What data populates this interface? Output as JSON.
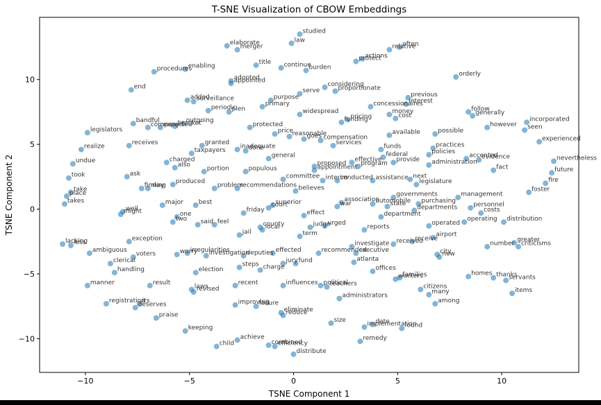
{
  "chart_data": {
    "type": "scatter",
    "title": "T-SNE Visualization of CBOW Embeddings",
    "xlabel": "TSNE Component 1",
    "ylabel": "TSNE Component 2",
    "xlim": [
      -12.2,
      13.7
    ],
    "ylim": [
      -12.6,
      14.8
    ],
    "xticks": [
      -10,
      -5,
      0,
      5,
      10
    ],
    "yticks": [
      -10,
      -5,
      0,
      5,
      10
    ],
    "grid": false,
    "marker_color": "#1f77b4",
    "points": [
      {
        "label": "studied",
        "x": 0.3,
        "y": 13.5
      },
      {
        "label": "elaborate",
        "x": -3.2,
        "y": 12.6
      },
      {
        "label": "merger",
        "x": -2.7,
        "y": 12.3
      },
      {
        "label": "law",
        "x": -0.1,
        "y": 12.8
      },
      {
        "label": "often",
        "x": 5.1,
        "y": 12.5
      },
      {
        "label": "relative",
        "x": 4.6,
        "y": 12.3
      },
      {
        "label": "actions",
        "x": 3.3,
        "y": 11.6
      },
      {
        "label": "protect",
        "x": 3.0,
        "y": 11.4
      },
      {
        "label": "title",
        "x": -1.8,
        "y": 11.1
      },
      {
        "label": "continue",
        "x": -0.6,
        "y": 10.9
      },
      {
        "label": "burden",
        "x": 0.6,
        "y": 10.7
      },
      {
        "label": "procedures",
        "x": -6.7,
        "y": 10.6
      },
      {
        "label": "enabling",
        "x": -5.2,
        "y": 10.8
      },
      {
        "label": "orderly",
        "x": 7.8,
        "y": 10.2
      },
      {
        "label": "adopted",
        "x": -3.0,
        "y": 9.9
      },
      {
        "label": "appointed",
        "x": -3.0,
        "y": 9.7
      },
      {
        "label": "end",
        "x": -7.8,
        "y": 9.2
      },
      {
        "label": "considering",
        "x": 1.5,
        "y": 9.4
      },
      {
        "label": "proportionate",
        "x": 2.0,
        "y": 9.1
      },
      {
        "label": "serve",
        "x": 0.3,
        "y": 8.9
      },
      {
        "label": "previous",
        "x": 5.5,
        "y": 8.6
      },
      {
        "label": "added",
        "x": -5.1,
        "y": 8.4
      },
      {
        "label": "surveillance",
        "x": -4.8,
        "y": 8.3
      },
      {
        "label": "purpose",
        "x": -1.1,
        "y": 8.4
      },
      {
        "label": "interest",
        "x": 5.4,
        "y": 8.1
      },
      {
        "label": "primary",
        "x": -1.5,
        "y": 7.9
      },
      {
        "label": "concessionaires",
        "x": 3.7,
        "y": 7.9
      },
      {
        "label": "periodic",
        "x": -4.1,
        "y": 7.6
      },
      {
        "label": "plen",
        "x": -3.1,
        "y": 7.5
      },
      {
        "label": "widespread",
        "x": 0.3,
        "y": 7.3
      },
      {
        "label": "money",
        "x": 4.6,
        "y": 7.3
      },
      {
        "label": "follow",
        "x": 8.4,
        "y": 7.5
      },
      {
        "label": "generally",
        "x": 8.6,
        "y": 7.2
      },
      {
        "label": "cost",
        "x": 4.9,
        "y": 7.0
      },
      {
        "label": "pricing",
        "x": 2.6,
        "y": 6.9
      },
      {
        "label": "funding",
        "x": 2.3,
        "y": 6.7
      },
      {
        "label": "bandful",
        "x": -7.7,
        "y": 6.6
      },
      {
        "label": "outgoing",
        "x": -5.3,
        "y": 6.6
      },
      {
        "label": "company",
        "x": -7.0,
        "y": 6.3
      },
      {
        "label": "bracket",
        "x": -5.7,
        "y": 6.4
      },
      {
        "label": "expected",
        "x": -6.4,
        "y": 6.3
      },
      {
        "label": "protected",
        "x": -2.1,
        "y": 6.3
      },
      {
        "label": "incorporated",
        "x": 11.2,
        "y": 6.7
      },
      {
        "label": "however",
        "x": 9.3,
        "y": 6.3
      },
      {
        "label": "seen",
        "x": 11.1,
        "y": 6.1
      },
      {
        "label": "legislators",
        "x": -9.9,
        "y": 5.9
      },
      {
        "label": "price",
        "x": -0.9,
        "y": 5.8
      },
      {
        "label": "reasonable",
        "x": -0.2,
        "y": 5.6
      },
      {
        "label": "available",
        "x": 4.6,
        "y": 5.7
      },
      {
        "label": "possible",
        "x": 6.8,
        "y": 5.8
      },
      {
        "label": "goes",
        "x": 0.5,
        "y": 5.4
      },
      {
        "label": "compensation",
        "x": 1.3,
        "y": 5.3
      },
      {
        "label": "experienced",
        "x": 11.8,
        "y": 5.2
      },
      {
        "label": "receives",
        "x": -7.9,
        "y": 4.9
      },
      {
        "label": "granted",
        "x": -4.4,
        "y": 4.9
      },
      {
        "label": "services",
        "x": 1.9,
        "y": 4.9
      },
      {
        "label": "realize",
        "x": -10.2,
        "y": 4.6
      },
      {
        "label": "inadequate",
        "x": -2.7,
        "y": 4.6
      },
      {
        "label": "done",
        "x": -2.3,
        "y": 4.5
      },
      {
        "label": "funds",
        "x": 4.2,
        "y": 4.6
      },
      {
        "label": "practices",
        "x": 6.7,
        "y": 4.7
      },
      {
        "label": "taxpayers",
        "x": -4.9,
        "y": 4.3
      },
      {
        "label": "policies",
        "x": 6.5,
        "y": 4.2
      },
      {
        "label": "federal",
        "x": 4.3,
        "y": 4.0
      },
      {
        "label": "accented",
        "x": 8.3,
        "y": 3.9
      },
      {
        "label": "evidence",
        "x": 8.9,
        "y": 3.8
      },
      {
        "label": "general",
        "x": -1.2,
        "y": 3.9
      },
      {
        "label": "effective",
        "x": 2.8,
        "y": 3.6
      },
      {
        "label": "provide",
        "x": 4.8,
        "y": 3.6
      },
      {
        "label": "nevertheless",
        "x": 12.5,
        "y": 3.7
      },
      {
        "label": "undue",
        "x": -10.6,
        "y": 3.5
      },
      {
        "label": "charged",
        "x": -6.1,
        "y": 3.6
      },
      {
        "label": "also",
        "x": -5.7,
        "y": 3.2
      },
      {
        "label": "administration",
        "x": 6.5,
        "y": 3.4
      },
      {
        "label": "proposed",
        "x": 1.0,
        "y": 3.3
      },
      {
        "label": "program",
        "x": 3.1,
        "y": 3.3
      },
      {
        "label": "appointment",
        "x": 1.0,
        "y": 3.0
      },
      {
        "label": "fact",
        "x": 9.6,
        "y": 3.0
      },
      {
        "label": "portion",
        "x": -4.3,
        "y": 2.9
      },
      {
        "label": "populous",
        "x": -2.3,
        "y": 2.9
      },
      {
        "label": "future",
        "x": 12.4,
        "y": 2.8
      },
      {
        "label": "took",
        "x": -10.8,
        "y": 2.4
      },
      {
        "label": "ask",
        "x": -8.0,
        "y": 2.5
      },
      {
        "label": "committee",
        "x": -0.5,
        "y": 2.3
      },
      {
        "label": "interim",
        "x": 1.4,
        "y": 2.2
      },
      {
        "label": "conducted",
        "x": 2.1,
        "y": 2.2
      },
      {
        "label": "assistance",
        "x": 3.8,
        "y": 2.2
      },
      {
        "label": "next",
        "x": 5.6,
        "y": 2.3
      },
      {
        "label": "legislature",
        "x": 5.9,
        "y": 1.9
      },
      {
        "label": "fire",
        "x": 12.1,
        "y": 2.0
      },
      {
        "label": "produced",
        "x": -5.8,
        "y": 1.9
      },
      {
        "label": "finding",
        "x": -7.3,
        "y": 1.6
      },
      {
        "label": "may",
        "x": -7.0,
        "y": 1.6
      },
      {
        "label": "problem",
        "x": -3.8,
        "y": 1.6
      },
      {
        "label": "recommendations",
        "x": -2.7,
        "y": 1.6
      },
      {
        "label": "believes",
        "x": 0.1,
        "y": 1.4
      },
      {
        "label": "take",
        "x": -10.7,
        "y": 1.3
      },
      {
        "label": "place",
        "x": -10.9,
        "y": 1.0
      },
      {
        "label": "foster",
        "x": 11.3,
        "y": 1.3
      },
      {
        "label": "governments",
        "x": 4.8,
        "y": 0.9
      },
      {
        "label": "management",
        "x": 7.9,
        "y": 0.9
      },
      {
        "label": "takes",
        "x": -11.0,
        "y": 0.4
      },
      {
        "label": "association",
        "x": 2.3,
        "y": 0.5
      },
      {
        "label": "automobile",
        "x": 3.8,
        "y": 0.4
      },
      {
        "label": "purchasing",
        "x": 6.0,
        "y": 0.4
      },
      {
        "label": "major",
        "x": -6.3,
        "y": 0.3
      },
      {
        "label": "best",
        "x": -4.7,
        "y": 0.3
      },
      {
        "label": "superior",
        "x": -1.0,
        "y": 0.3
      },
      {
        "label": "court",
        "x": -1.2,
        "y": 0.1
      },
      {
        "label": "war",
        "x": 2.1,
        "y": 0.2
      },
      {
        "label": "state",
        "x": 4.5,
        "y": 0.2
      },
      {
        "label": "personnel",
        "x": 8.5,
        "y": 0.1
      },
      {
        "label": "departments",
        "x": 5.8,
        "y": -0.1
      },
      {
        "label": "well",
        "x": -8.2,
        "y": -0.2
      },
      {
        "label": "might",
        "x": -8.3,
        "y": -0.4
      },
      {
        "label": "friday",
        "x": -2.4,
        "y": -0.3
      },
      {
        "label": "costs",
        "x": 9.0,
        "y": -0.3
      },
      {
        "label": "one",
        "x": -5.6,
        "y": -0.6
      },
      {
        "label": "effect",
        "x": 0.5,
        "y": -0.5
      },
      {
        "label": "department",
        "x": 4.2,
        "y": -0.6
      },
      {
        "label": "two",
        "x": -5.8,
        "y": -1.0
      },
      {
        "label": "said",
        "x": -4.6,
        "y": -1.2
      },
      {
        "label": "feel",
        "x": -3.8,
        "y": -1.2
      },
      {
        "label": "operating",
        "x": 8.2,
        "y": -1.0
      },
      {
        "label": "distribution",
        "x": 10.1,
        "y": -1.0
      },
      {
        "label": "judge",
        "x": 0.8,
        "y": -1.4
      },
      {
        "label": "urged",
        "x": 1.5,
        "y": -1.3
      },
      {
        "label": "county",
        "x": -1.6,
        "y": -1.4
      },
      {
        "label": "local",
        "x": -1.5,
        "y": -1.6
      },
      {
        "label": "operated",
        "x": 6.5,
        "y": -1.3
      },
      {
        "label": "reports",
        "x": 3.4,
        "y": -1.6
      },
      {
        "label": "jail",
        "x": -2.6,
        "y": -2.0
      },
      {
        "label": "term",
        "x": 0.3,
        "y": -2.1
      },
      {
        "label": "airport",
        "x": 6.7,
        "y": -2.2
      },
      {
        "label": "exception",
        "x": -7.9,
        "y": -2.5
      },
      {
        "label": "receive",
        "x": 5.7,
        "y": -2.5
      },
      {
        "label": "received",
        "x": 4.8,
        "y": -2.7
      },
      {
        "label": "greater",
        "x": 10.6,
        "y": -2.6
      },
      {
        "label": "lacking",
        "x": -11.1,
        "y": -2.7
      },
      {
        "label": "less",
        "x": -10.7,
        "y": -2.8
      },
      {
        "label": "investigate",
        "x": 2.8,
        "y": -2.9
      },
      {
        "label": "number",
        "x": 9.3,
        "y": -2.9
      },
      {
        "label": "criticisms",
        "x": 10.8,
        "y": -2.9
      },
      {
        "label": "ambiguous",
        "x": -9.8,
        "y": -3.4
      },
      {
        "label": "irregularities",
        "x": -5.1,
        "y": -3.4
      },
      {
        "label": "effected",
        "x": -1.0,
        "y": -3.4
      },
      {
        "label": "recommended",
        "x": 1.2,
        "y": -3.4
      },
      {
        "label": "executive",
        "x": 3.0,
        "y": -3.4
      },
      {
        "label": "city",
        "x": 6.9,
        "y": -3.5
      },
      {
        "label": "new",
        "x": 7.0,
        "y": -3.7
      },
      {
        "label": "voters",
        "x": -7.7,
        "y": -3.7
      },
      {
        "label": "worry",
        "x": -5.6,
        "y": -3.5
      },
      {
        "label": "investigation",
        "x": -4.2,
        "y": -3.6
      },
      {
        "label": "deputies",
        "x": -2.4,
        "y": -3.6
      },
      {
        "label": "clerical",
        "x": -8.8,
        "y": -4.2
      },
      {
        "label": "atlanta",
        "x": 2.9,
        "y": -4.1
      },
      {
        "label": "jury",
        "x": -0.5,
        "y": -4.2
      },
      {
        "label": "fund",
        "x": 0.1,
        "y": -4.2
      },
      {
        "label": "steps",
        "x": -2.6,
        "y": -4.5
      },
      {
        "label": "charge",
        "x": -1.6,
        "y": -4.7
      },
      {
        "label": "handling",
        "x": -8.6,
        "y": -4.9
      },
      {
        "label": "election",
        "x": -4.7,
        "y": -4.9
      },
      {
        "label": "offices",
        "x": 3.8,
        "y": -4.8
      },
      {
        "label": "workers",
        "x": 4.9,
        "y": -5.4
      },
      {
        "label": "families",
        "x": 5.1,
        "y": -5.3
      },
      {
        "label": "homes",
        "x": 8.4,
        "y": -5.2
      },
      {
        "label": "thanks",
        "x": 9.6,
        "y": -5.3
      },
      {
        "label": "servants",
        "x": 10.2,
        "y": -5.5
      },
      {
        "label": "manner",
        "x": -9.9,
        "y": -5.9
      },
      {
        "label": "result",
        "x": -6.9,
        "y": -5.9
      },
      {
        "label": "recent",
        "x": -2.8,
        "y": -5.9
      },
      {
        "label": "influences",
        "x": -0.5,
        "y": -5.9
      },
      {
        "label": "political",
        "x": 1.3,
        "y": -5.9
      },
      {
        "label": "teachers",
        "x": 1.6,
        "y": -6.0
      },
      {
        "label": "laws",
        "x": -4.9,
        "y": -6.2
      },
      {
        "label": "revised",
        "x": -4.8,
        "y": -6.4
      },
      {
        "label": "citizens",
        "x": 6.1,
        "y": -6.2
      },
      {
        "label": "many",
        "x": 6.5,
        "y": -6.6
      },
      {
        "label": "items",
        "x": 10.5,
        "y": -6.5
      },
      {
        "label": "administrators",
        "x": 2.2,
        "y": -6.9
      },
      {
        "label": "registration",
        "x": -9.0,
        "y": -7.3
      },
      {
        "label": "its",
        "x": -7.4,
        "y": -7.3
      },
      {
        "label": "among",
        "x": 6.8,
        "y": -7.3
      },
      {
        "label": "improving",
        "x": -2.8,
        "y": -7.4
      },
      {
        "label": "failure",
        "x": -1.8,
        "y": -7.5
      },
      {
        "label": "deserves",
        "x": -7.6,
        "y": -7.6
      },
      {
        "label": "eliminate",
        "x": -0.6,
        "y": -8.0
      },
      {
        "label": "reduce",
        "x": -0.5,
        "y": -8.2
      },
      {
        "label": "praise",
        "x": -6.6,
        "y": -8.4
      },
      {
        "label": "size",
        "x": 1.8,
        "y": -8.8
      },
      {
        "label": "date",
        "x": 3.8,
        "y": -8.9
      },
      {
        "label": "implementation",
        "x": 3.4,
        "y": -9.1
      },
      {
        "label": "found",
        "x": 5.2,
        "y": -9.2
      },
      {
        "label": "keeping",
        "x": -5.2,
        "y": -9.4
      },
      {
        "label": "achieve",
        "x": -2.7,
        "y": -10.1
      },
      {
        "label": "remedy",
        "x": 3.2,
        "y": -10.2
      },
      {
        "label": "child",
        "x": -3.7,
        "y": -10.6
      },
      {
        "label": "combined",
        "x": -1.2,
        "y": -10.5
      },
      {
        "label": "efficiency",
        "x": -0.9,
        "y": -10.6
      },
      {
        "label": "distribute",
        "x": 0.0,
        "y": -11.2
      }
    ]
  }
}
